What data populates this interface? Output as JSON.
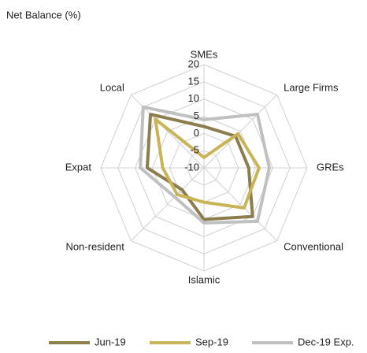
{
  "chart_data": {
    "type": "radar",
    "title": "Net Balance (%)",
    "categories": [
      "SMEs",
      "Large Firms",
      "GREs",
      "Conventional",
      "Islamic",
      "Non-resident",
      "Expat",
      "Local"
    ],
    "series": [
      {
        "name": "Jun-19",
        "color": "#8c7d4f",
        "values": [
          2,
          3,
          3,
          10,
          5,
          -1,
          6.5,
          12
        ]
      },
      {
        "name": "Sep-19",
        "color": "#c9b458",
        "values": [
          -7,
          4,
          6,
          6.5,
          0,
          1,
          2,
          10
        ]
      },
      {
        "name": "Dec-19 Exp.",
        "color": "#c0c0c0",
        "values": [
          4,
          12,
          9,
          12,
          6,
          2,
          8.5,
          15
        ]
      }
    ],
    "rlim": [
      -10,
      20
    ],
    "rticks": [
      -10,
      -5,
      0,
      5,
      10,
      15,
      20
    ],
    "grid": true,
    "legend": "bottom"
  }
}
